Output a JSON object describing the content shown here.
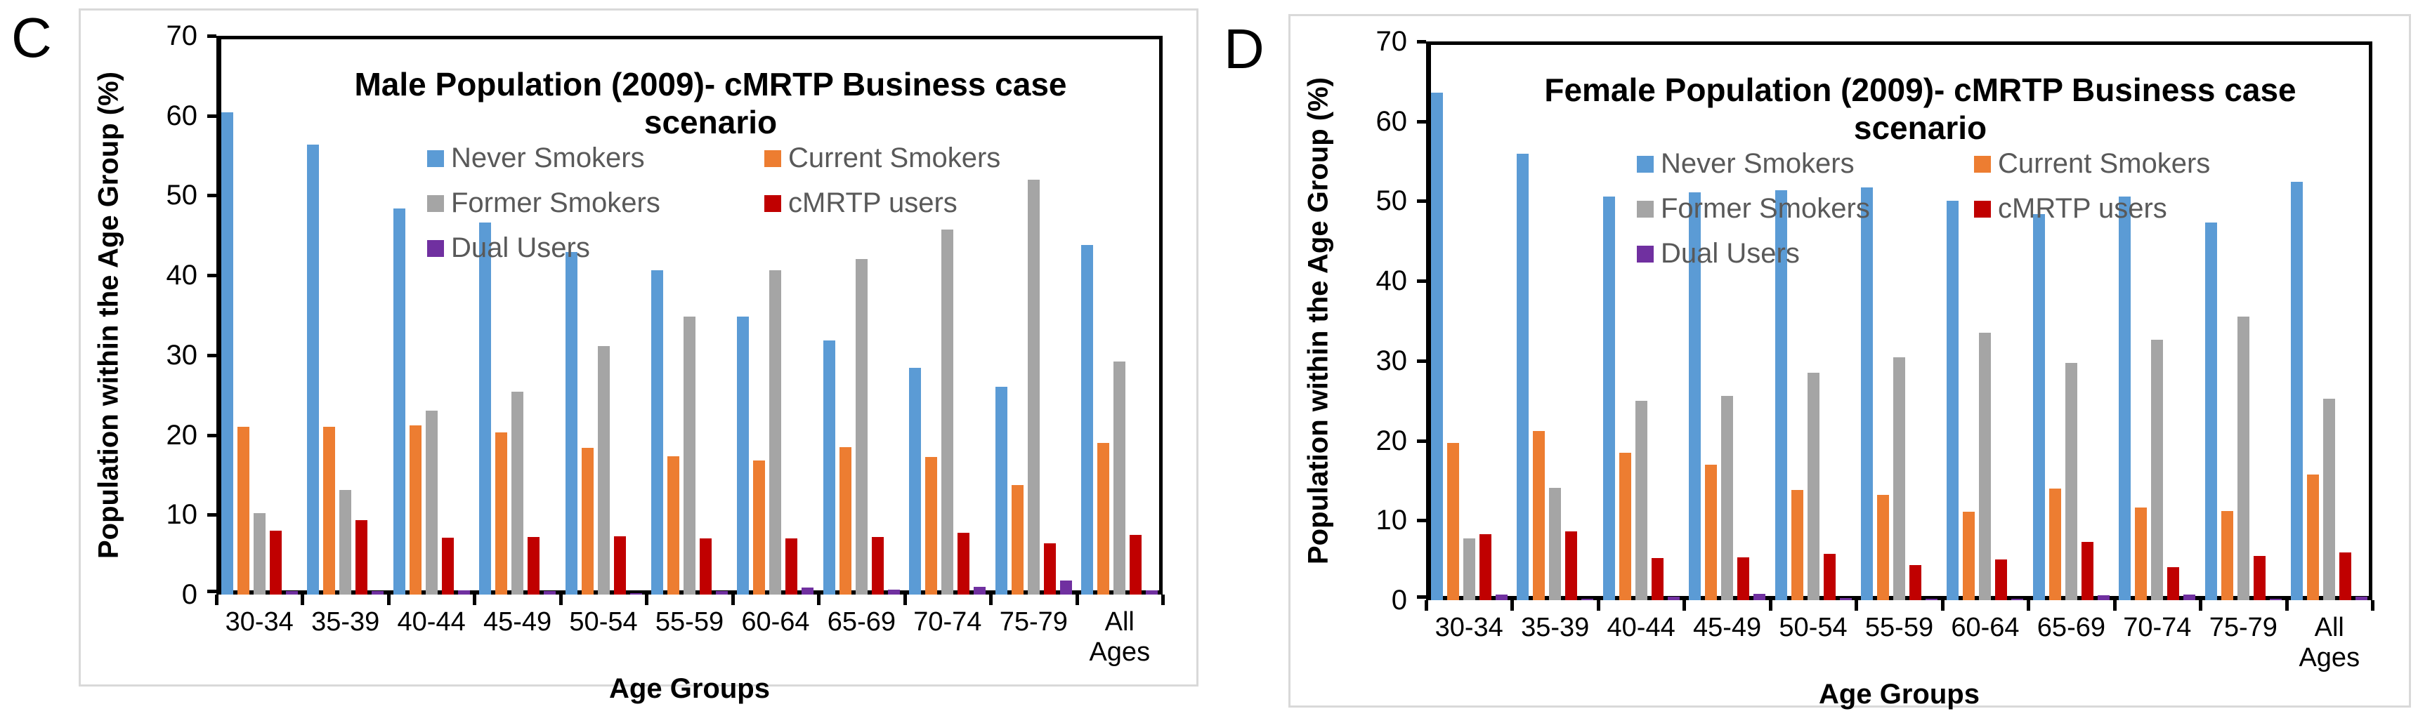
{
  "figure": {
    "panel_labels": [
      "C",
      "D"
    ],
    "colors": {
      "never_smokers": "#5B9BD5",
      "current_smokers": "#ED7D31",
      "former_smokers": "#A5A5A5",
      "cmrtp_users": "#C00000",
      "dual_users": "#7030A0",
      "legend_text": "#595959",
      "panel_border": "#D9D9D9",
      "axis": "#000000"
    }
  },
  "chart_data": [
    {
      "type": "bar",
      "title": "Male Population (2009)- cMRTP Business case scenario",
      "xlabel": "Age Groups",
      "ylabel": "Population within the Age Group (%)",
      "ylim": [
        0,
        70
      ],
      "ytick_step": 10,
      "grid": false,
      "legend_position": "inside-top-two-columns",
      "categories": [
        "30-34",
        "35-39",
        "40-44",
        "45-49",
        "50-54",
        "55-59",
        "60-64",
        "65-69",
        "70-74",
        "75-79",
        "All Ages"
      ],
      "series": [
        {
          "name": "Never Smokers",
          "color": "#5B9BD5",
          "values": [
            60.4,
            56.4,
            48.4,
            46.6,
            42.9,
            40.6,
            34.8,
            31.8,
            28.4,
            26.0,
            43.8
          ]
        },
        {
          "name": "Current Smokers",
          "color": "#ED7D31",
          "values": [
            21.0,
            21.0,
            21.2,
            20.3,
            18.4,
            17.3,
            16.8,
            18.5,
            17.2,
            13.7,
            19.0
          ]
        },
        {
          "name": "Former Smokers",
          "color": "#A5A5A5",
          "values": [
            10.2,
            13.1,
            23.0,
            25.4,
            31.1,
            34.8,
            40.6,
            42.0,
            45.7,
            52.0,
            29.2
          ]
        },
        {
          "name": "cMRTP users",
          "color": "#C00000",
          "values": [
            8.0,
            9.3,
            7.1,
            7.2,
            7.3,
            7.0,
            7.0,
            7.2,
            7.7,
            6.4,
            7.5
          ]
        },
        {
          "name": "Dual Users",
          "color": "#7030A0",
          "values": [
            0.4,
            0.4,
            0.5,
            0.4,
            0.2,
            0.4,
            0.9,
            0.6,
            1.0,
            1.8,
            0.5
          ]
        }
      ]
    },
    {
      "type": "bar",
      "title": "Female Population (2009)- cMRTP Business case scenario",
      "xlabel": "Age Groups",
      "ylabel": "Population within the Age Group (%)",
      "ylim": [
        0,
        70
      ],
      "ytick_step": 10,
      "grid": false,
      "legend_position": "inside-top-two-columns",
      "categories": [
        "30-34",
        "35-39",
        "40-44",
        "45-49",
        "50-54",
        "55-59",
        "60-64",
        "65-69",
        "70-74",
        "75-79",
        "All Ages"
      ],
      "series": [
        {
          "name": "Never Smokers",
          "color": "#5B9BD5",
          "values": [
            63.6,
            55.9,
            50.6,
            51.1,
            51.4,
            51.7,
            50.0,
            48.4,
            50.6,
            47.3,
            52.4
          ]
        },
        {
          "name": "Current Smokers",
          "color": "#ED7D31",
          "values": [
            19.7,
            21.2,
            18.5,
            17.0,
            13.8,
            13.2,
            11.1,
            14.0,
            11.6,
            11.2,
            15.7
          ]
        },
        {
          "name": "Former Smokers",
          "color": "#A5A5A5",
          "values": [
            7.7,
            14.1,
            25.0,
            25.6,
            28.5,
            30.4,
            33.5,
            29.7,
            32.6,
            35.5,
            25.2
          ]
        },
        {
          "name": "cMRTP users",
          "color": "#C00000",
          "values": [
            8.3,
            8.6,
            5.3,
            5.4,
            5.8,
            4.4,
            5.1,
            7.3,
            4.1,
            5.5,
            6.0
          ]
        },
        {
          "name": "Dual Users",
          "color": "#7030A0",
          "values": [
            0.7,
            0.1,
            0.4,
            0.8,
            0.3,
            0.2,
            0.2,
            0.6,
            0.7,
            0.2,
            0.4
          ]
        }
      ]
    }
  ]
}
